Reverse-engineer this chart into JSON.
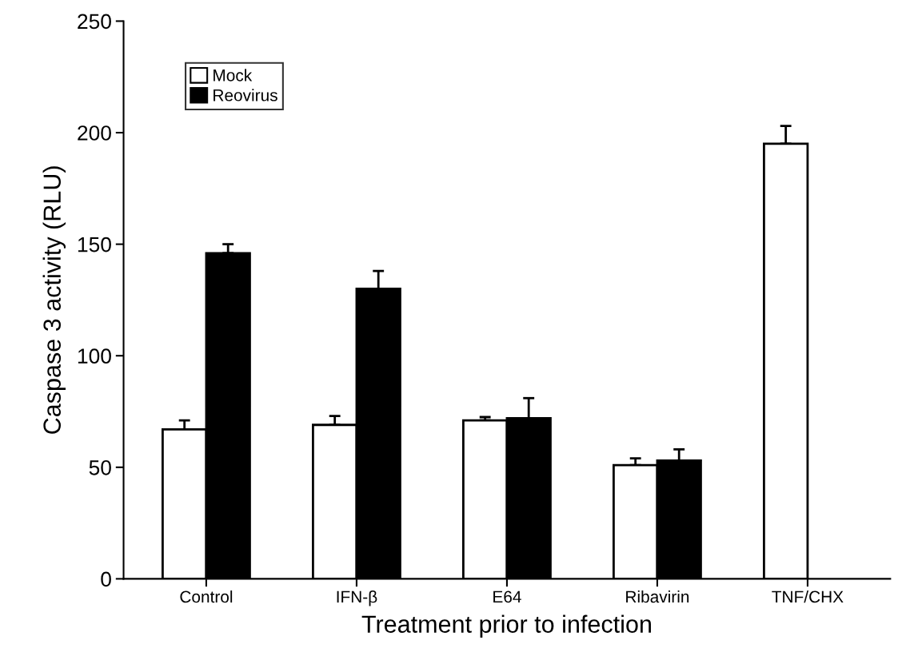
{
  "chart_data": {
    "type": "bar",
    "xlabel": "Treatment prior to infection",
    "ylabel": "Caspase 3 activity (RLU)",
    "categories": [
      "Control",
      "IFN-β",
      "E64",
      "Ribavirin",
      "TNF/CHX"
    ],
    "series": [
      {
        "name": "Mock",
        "color": "#ffffff",
        "values": [
          67,
          69,
          71,
          51,
          195
        ],
        "errors": [
          4,
          4,
          1.5,
          3,
          8
        ]
      },
      {
        "name": "Reovirus",
        "color": "#000000",
        "values": [
          146,
          130,
          72,
          53,
          null
        ],
        "errors": [
          4,
          8,
          9,
          5,
          null
        ]
      }
    ],
    "ylim": [
      0,
      250
    ],
    "yticks": [
      0,
      50,
      100,
      150,
      200,
      250
    ],
    "grid": false,
    "legend": "top left"
  }
}
